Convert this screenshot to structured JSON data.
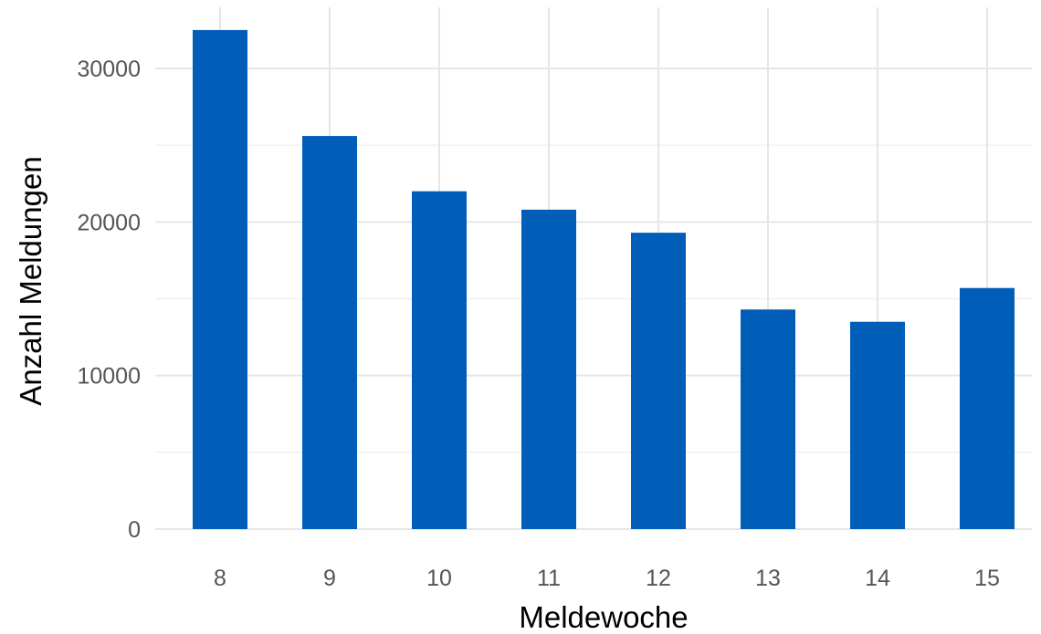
{
  "chart_data": {
    "type": "bar",
    "categories": [
      "8",
      "9",
      "10",
      "11",
      "12",
      "13",
      "14",
      "15"
    ],
    "values": [
      32500,
      25600,
      22000,
      20800,
      19300,
      14300,
      13500,
      15700
    ],
    "xlabel": "Meldewoche",
    "ylabel": "Anzahl Meldungen",
    "ylim": [
      0,
      33000
    ],
    "yticks": [
      0,
      10000,
      20000,
      30000
    ],
    "ytick_labels": [
      "0",
      "10000",
      "20000",
      "30000"
    ],
    "grid": true,
    "bar_color": "#005EB8"
  }
}
